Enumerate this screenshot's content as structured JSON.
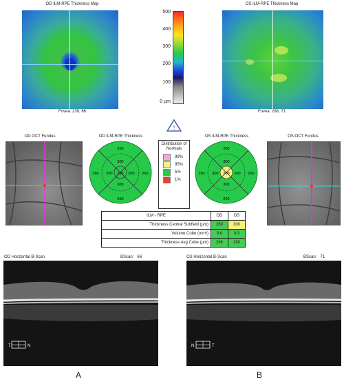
{
  "maps": {
    "od": {
      "title": "OD ILM-RPE Thickness Map",
      "fovea": "Fovea: 239, 66"
    },
    "os": {
      "title": "OS ILM-RPE Thickness Map",
      "fovea": "Fovea: 298, 71"
    }
  },
  "scale": {
    "ticks": [
      "500",
      "400",
      "300",
      "200",
      "100",
      "0 µm"
    ]
  },
  "fundus": {
    "od": {
      "title": "OD OCT Fundus"
    },
    "os": {
      "title": "OS OCT Fundus"
    }
  },
  "thickness": {
    "od": {
      "title": "OD ILM-RPE Thickness",
      "center": "260",
      "inner": [
        "300",
        "300",
        "300",
        "300"
      ],
      "outer": [
        "260",
        "260",
        "260",
        "260"
      ]
    },
    "os": {
      "title": "OS ILM-RPE Thickness",
      "center": "300",
      "inner": [
        "300",
        "300",
        "300",
        "300"
      ],
      "outer": [
        "260",
        "260",
        "260",
        "260"
      ]
    }
  },
  "legend": {
    "title": "Distribution of Normals",
    "items": [
      {
        "label": "99%",
        "color": "#f4a6d4"
      },
      {
        "label": "95%",
        "color": "#f7f07a"
      },
      {
        "label": "5%",
        "color": "#27c94a"
      },
      {
        "label": "1%",
        "color": "#ee3b2a"
      }
    ]
  },
  "table": {
    "header": [
      "ILM - RPE",
      "OD",
      "OS"
    ],
    "rows": [
      {
        "label": "Thickness Central Subfield (µm)",
        "od": "260",
        "os": "300",
        "od_color": "#44cc55",
        "os_color": "#f7f07a"
      },
      {
        "label": "Volume Cube (mm³)",
        "od": "9.6",
        "os": "9.9",
        "od_color": "#44cc55",
        "os_color": "#44cc55"
      },
      {
        "label": "Thickness Avg Cube (µm)",
        "od": "266",
        "os": "280",
        "od_color": "#44cc55",
        "os_color": "#44cc55"
      }
    ]
  },
  "bscan": {
    "od": {
      "title": "OD Horizontal B-Scan",
      "bscan_label": "BScan:",
      "bscan_value": "66",
      "orient_left": "T",
      "orient_right": "N"
    },
    "os": {
      "title": "OS Horizontal B-Scan",
      "bscan_label": "BScan:",
      "bscan_value": "71",
      "orient_left": "N",
      "orient_right": "T"
    }
  },
  "panels": {
    "a": "A",
    "b": "B"
  },
  "colors": {
    "accent": "#7fd0ff",
    "magenta": "#ff22ff",
    "normal_green": "#27c94a"
  }
}
